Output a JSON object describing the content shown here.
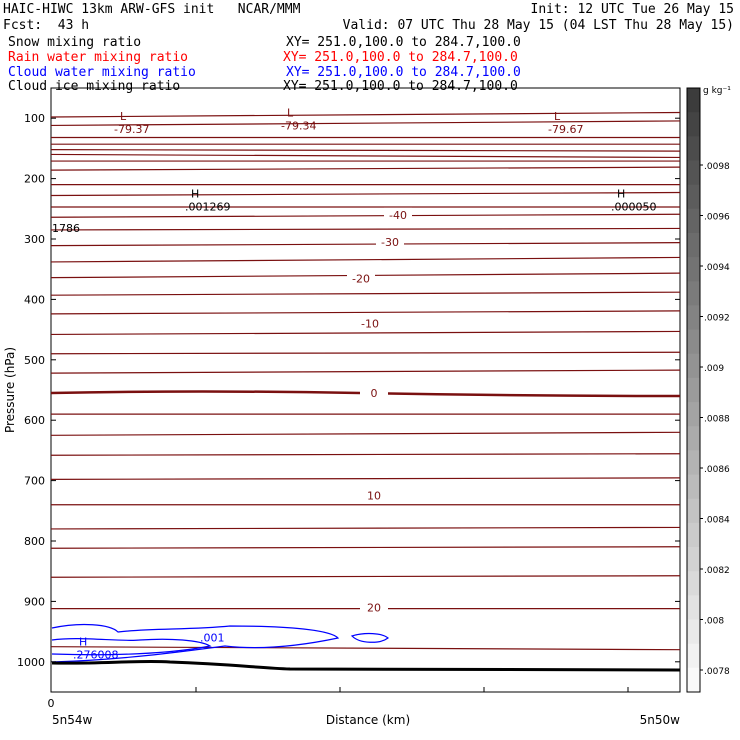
{
  "header": {
    "title_left": "HAIC-HIWC 13km ARW-GFS init   NCAR/MMM",
    "init": "Init: 12 UTC Tue 26 May 15",
    "fcst": "Fcst:  43 h",
    "valid": "Valid: 07 UTC Thu 28 May 15 (04 LST Thu 28 May 15)"
  },
  "legend": [
    {
      "label": "Snow mixing ratio",
      "xy": "XY= 251.0,100.0 to 284.7,100.0",
      "color": "#000000"
    },
    {
      "label": "Rain water mixing ratio",
      "xy": "XY= 251.0,100.0 to 284.7,100.0",
      "color": "#ff0000"
    },
    {
      "label": "Cloud water mixing ratio",
      "xy": "XY= 251.0,100.0 to 284.7,100.0",
      "color": "#0000ff"
    },
    {
      "label": "Cloud ice mixing ratio",
      "xy": "XY= 251.0,100.0 to 284.7,100.0",
      "color": "#000000"
    }
  ],
  "chart_data": {
    "type": "line",
    "xlabel": "Distance (km)",
    "ylabel": "Pressure (hPa)",
    "x_tick_labels": [
      "0"
    ],
    "x_end_labels": [
      "5n54w",
      "5n50w"
    ],
    "ylim": [
      1050,
      50
    ],
    "y_ticks": [
      100,
      200,
      300,
      400,
      500,
      600,
      700,
      800,
      900,
      1000
    ],
    "colorbar": {
      "unit": "g kg⁻¹",
      "tick_labels": [
        ".0078",
        ".008",
        ".0082",
        ".0084",
        ".0086",
        ".0088",
        ".009",
        ".0092",
        ".0094",
        ".0096",
        ".0098"
      ]
    },
    "temperature_contour_labels": [
      {
        "text": "-40",
        "pressure": 260
      },
      {
        "text": "-30",
        "pressure": 305
      },
      {
        "text": "-20",
        "pressure": 365
      },
      {
        "text": "-10",
        "pressure": 440
      },
      {
        "text": "0",
        "pressure": 555
      },
      {
        "text": "10",
        "pressure": 725
      },
      {
        "text": "20",
        "pressure": 910
      }
    ],
    "extrema": [
      {
        "mark": "L",
        "value": "-79.37"
      },
      {
        "mark": "L",
        "value": "-79.34"
      },
      {
        "mark": "L",
        "value": "-79.67"
      },
      {
        "mark": "H",
        "value": ".001269"
      },
      {
        "mark": "H",
        "value": ".000050"
      },
      {
        "mark": "H",
        "value": ".276008"
      }
    ],
    "other_labels": [
      ".001",
      "1786"
    ],
    "colors": {
      "temperature": "#7a1010",
      "cloud_water": "#0000ff",
      "terrain": "#000000"
    }
  }
}
